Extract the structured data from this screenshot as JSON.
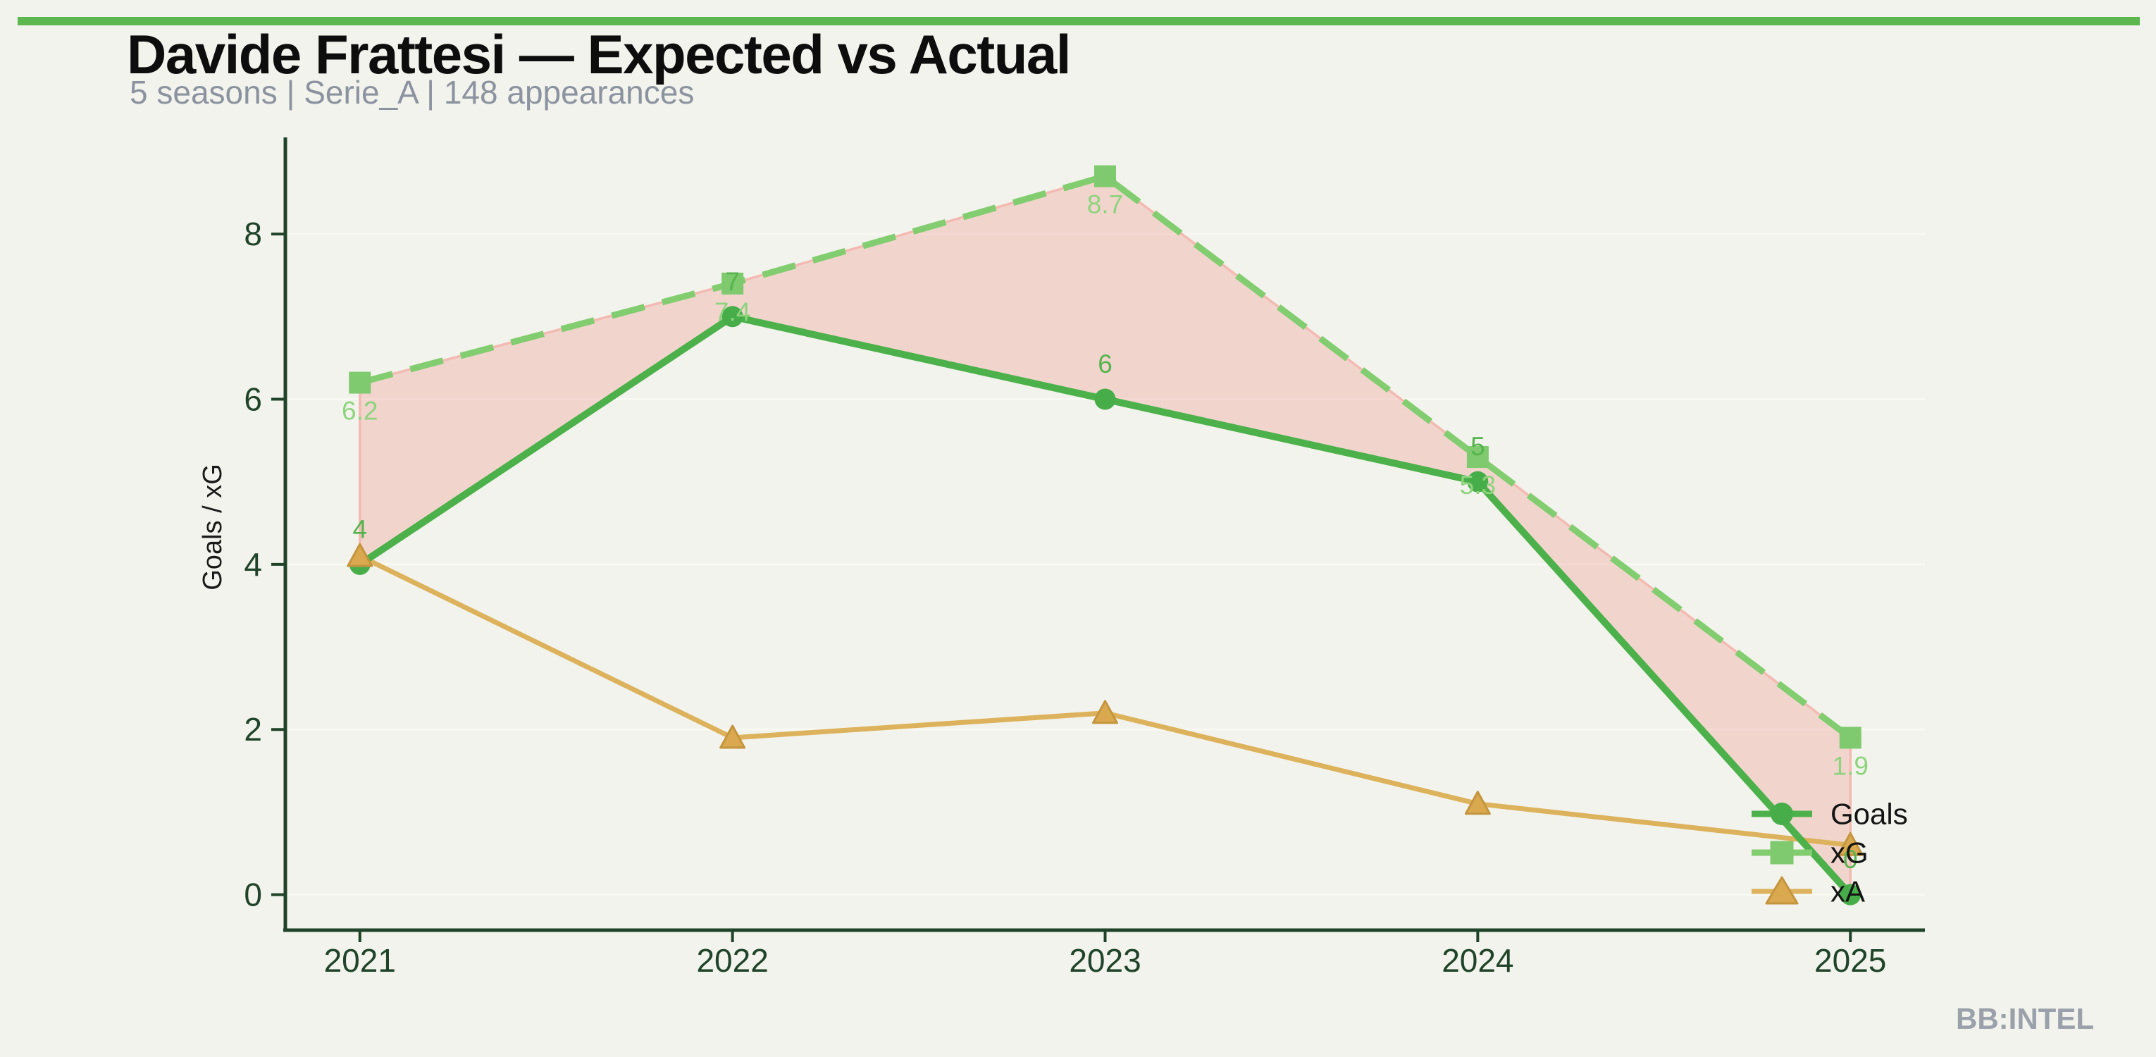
{
  "page": {
    "accent_bar_color": "#5cb84e",
    "background_color": "#f2f3ec",
    "title": "Davide Frattesi — Expected vs Actual",
    "subtitle": "5 seasons | Serie_A | 148 appearances",
    "watermark": "BB:INTEL"
  },
  "chart_data": {
    "type": "line",
    "title": "Davide Frattesi — Expected vs Actual",
    "xlabel": "",
    "ylabel": "Goals / xG",
    "x": [
      2021,
      2022,
      2023,
      2024,
      2025
    ],
    "x_tick_labels": [
      "2021",
      "2022",
      "2023",
      "2024",
      "2025"
    ],
    "yticks": [
      0,
      2,
      4,
      6,
      8
    ],
    "y_tick_labels": [
      "0",
      "2",
      "4",
      "6",
      "8"
    ],
    "xlim": [
      2020.8,
      2025.2
    ],
    "ylim": [
      -0.43,
      9.17
    ],
    "grid": {
      "horizontal": true,
      "vertical": false,
      "color": "#f8f9f2"
    },
    "axis_color": "#1f4429",
    "tick_label_color": "#1f4429",
    "axis_title_color": "#1a1a1a",
    "series": [
      {
        "name": "xA",
        "values": [
          4.1,
          1.9,
          2.2,
          1.1,
          0.6
        ],
        "labels": [],
        "color": "#ddb25c",
        "marker": "triangle",
        "marker_fill": "#d9a84f",
        "marker_stroke": "#c4953e",
        "line_style": "solid",
        "line_width": 7
      },
      {
        "name": "Goals",
        "values": [
          4,
          7,
          6,
          5,
          0
        ],
        "labels": [
          "4",
          "7",
          "6",
          "5",
          "0"
        ],
        "label_color": "#55b44d",
        "label_position": "above",
        "color": "#4cb14b",
        "marker": "circle",
        "marker_fill": "#46ad49",
        "line_style": "solid",
        "line_width": 10
      },
      {
        "name": "xG",
        "values": [
          6.2,
          7.4,
          8.7,
          5.3,
          1.9
        ],
        "labels": [
          "6.2",
          "7.4",
          "8.7",
          "5.3",
          "1.9"
        ],
        "label_color": "#8ed47e",
        "label_position": "below",
        "color": "#82cd70",
        "marker": "square",
        "marker_fill": "#7fca6e",
        "line_style": "dashed",
        "line_width": 9
      }
    ],
    "fill_between": {
      "upper": "xG",
      "lower": "Goals",
      "fill": "rgba(239,168,160,0.40)",
      "stroke": "rgba(242,183,176,0.95)"
    },
    "legend": {
      "entries": [
        "Goals",
        "xG",
        "xA"
      ],
      "text_color": "#141414",
      "position": "inside-right"
    }
  }
}
